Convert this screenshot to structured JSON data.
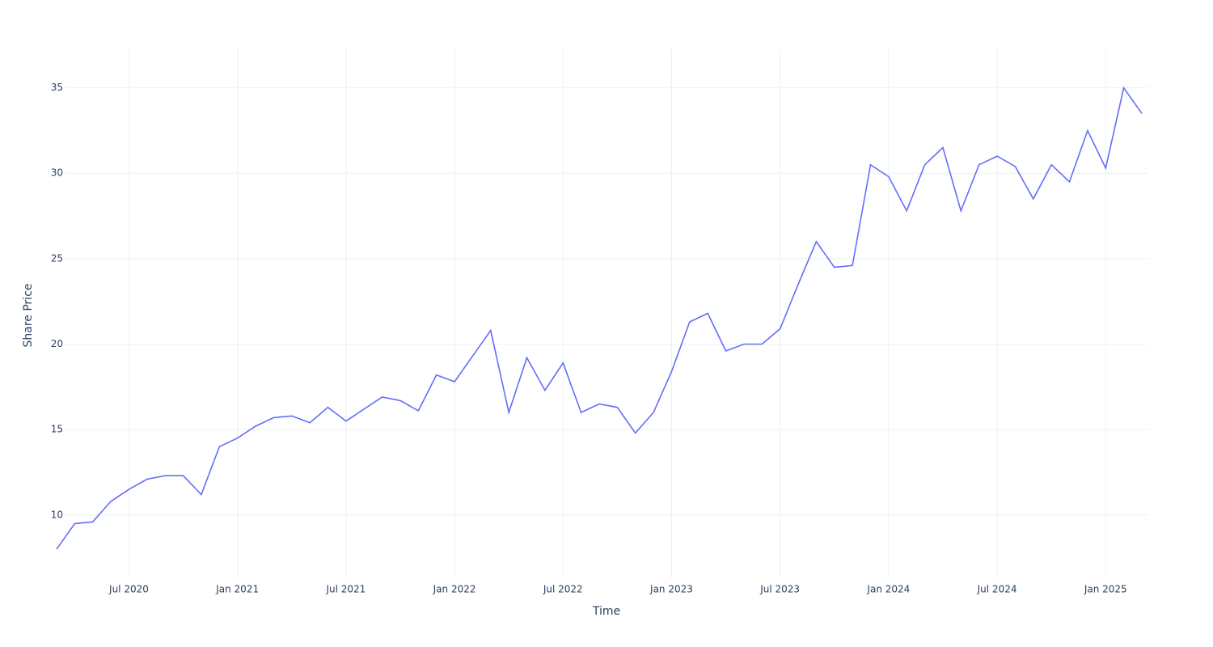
{
  "chart_data": {
    "type": "line",
    "xlabel": "Time",
    "ylabel": "Share Price",
    "x": [
      "2020-03",
      "2020-04",
      "2020-05",
      "2020-06",
      "2020-07",
      "2020-08",
      "2020-09",
      "2020-10",
      "2020-11",
      "2020-12",
      "2021-01",
      "2021-02",
      "2021-03",
      "2021-04",
      "2021-05",
      "2021-06",
      "2021-07",
      "2021-08",
      "2021-09",
      "2021-10",
      "2021-11",
      "2021-12",
      "2022-01",
      "2022-02",
      "2022-03",
      "2022-04",
      "2022-05",
      "2022-06",
      "2022-07",
      "2022-08",
      "2022-09",
      "2022-10",
      "2022-11",
      "2022-12",
      "2023-01",
      "2023-02",
      "2023-03",
      "2023-04",
      "2023-05",
      "2023-06",
      "2023-07",
      "2023-08",
      "2023-09",
      "2023-10",
      "2023-11",
      "2023-12",
      "2024-01",
      "2024-02",
      "2024-03",
      "2024-04",
      "2024-05",
      "2024-06",
      "2024-07",
      "2024-08",
      "2024-09",
      "2024-10",
      "2024-11",
      "2024-12",
      "2025-01",
      "2025-02",
      "2025-03"
    ],
    "series": [
      {
        "name": "Share Price",
        "color": "#636efa",
        "values": [
          8.0,
          9.5,
          9.6,
          10.8,
          11.5,
          12.1,
          12.3,
          12.3,
          11.2,
          14.0,
          14.5,
          15.2,
          15.7,
          15.8,
          15.4,
          16.3,
          15.5,
          16.2,
          16.9,
          16.7,
          16.1,
          18.2,
          17.8,
          19.3,
          20.8,
          16.0,
          19.2,
          17.3,
          18.9,
          16.0,
          16.5,
          16.3,
          14.8,
          16.0,
          18.4,
          21.3,
          21.8,
          19.6,
          20.0,
          20.0,
          20.9,
          23.5,
          26.0,
          24.5,
          24.6,
          30.5,
          29.8,
          27.8,
          30.5,
          31.5,
          27.8,
          30.5,
          31.0,
          30.4,
          28.5,
          30.5,
          29.5,
          32.5,
          30.3,
          35.0,
          33.5
        ]
      }
    ],
    "xlim": [
      "2020-03",
      "2025-03"
    ],
    "xticks": [
      {
        "value": "2020-07",
        "label": "Jul 2020"
      },
      {
        "value": "2021-01",
        "label": "Jan 2021"
      },
      {
        "value": "2021-07",
        "label": "Jul 2021"
      },
      {
        "value": "2022-01",
        "label": "Jan 2022"
      },
      {
        "value": "2022-07",
        "label": "Jul 2022"
      },
      {
        "value": "2023-01",
        "label": "Jan 2023"
      },
      {
        "value": "2023-07",
        "label": "Jul 2023"
      },
      {
        "value": "2024-01",
        "label": "Jan 2024"
      },
      {
        "value": "2024-07",
        "label": "Jul 2024"
      },
      {
        "value": "2025-01",
        "label": "Jan 2025"
      }
    ],
    "ylim": [
      6.3,
      37.3
    ],
    "yticks": [
      10,
      15,
      20,
      25,
      30,
      35
    ],
    "grid": true
  }
}
